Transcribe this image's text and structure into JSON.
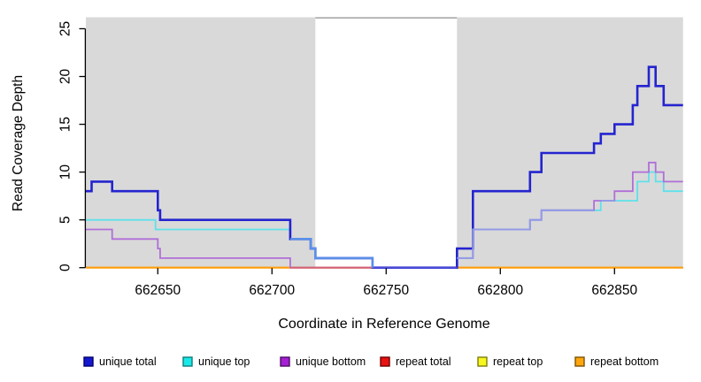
{
  "chart_data": {
    "type": "line",
    "subtype": "step-coverage",
    "title": "",
    "xlabel": "Coordinate in Reference Genome",
    "ylabel": "Read Coverage Depth",
    "xlim": [
      662618.5,
      662880
    ],
    "ylim": [
      0,
      26.2
    ],
    "x_ticks": [
      662650,
      662700,
      662750,
      662800,
      662850
    ],
    "y_ticks": [
      0,
      5,
      10,
      15,
      20,
      25
    ],
    "grid": false,
    "legend_position": "bottom",
    "panel_background": "#d9d9d9",
    "masked_region": {
      "x_start": 662719,
      "x_end": 662781,
      "color": "#ffffff",
      "top_border_color": "#9a9a9a"
    },
    "series": [
      {
        "name": "unique total",
        "color": "#2424cf",
        "width": 2.6,
        "steps": [
          [
            662618.5,
            8
          ],
          [
            662621,
            9
          ],
          [
            662630,
            8
          ],
          [
            662650,
            6
          ],
          [
            662651,
            5
          ],
          [
            662708,
            3
          ],
          [
            662717,
            2
          ],
          [
            662719,
            1
          ],
          [
            662744,
            0
          ],
          [
            662781,
            2
          ],
          [
            662788,
            8
          ],
          [
            662813,
            10
          ],
          [
            662818,
            12
          ],
          [
            662841,
            13
          ],
          [
            662844,
            14
          ],
          [
            662850,
            15
          ],
          [
            662858,
            17
          ],
          [
            662860,
            19
          ],
          [
            662865,
            21
          ],
          [
            662868,
            19
          ],
          [
            662871.5,
            17
          ]
        ],
        "end_x": 662880
      },
      {
        "name": "unique top",
        "color": "#5ee1ea",
        "width": 1.8,
        "steps": [
          [
            662618.5,
            5
          ],
          [
            662649,
            4
          ],
          [
            662708,
            3
          ],
          [
            662717,
            2
          ],
          [
            662719,
            1
          ],
          [
            662744,
            0
          ],
          [
            662781,
            1
          ],
          [
            662788,
            4
          ],
          [
            662813,
            5
          ],
          [
            662818,
            6
          ],
          [
            662844,
            7
          ],
          [
            662860,
            9
          ],
          [
            662865,
            10
          ],
          [
            662868,
            9
          ],
          [
            662871.5,
            8
          ]
        ],
        "end_x": 662880
      },
      {
        "name": "unique bottom",
        "color": "#b06fd8",
        "width": 1.8,
        "steps": [
          [
            662618.5,
            4
          ],
          [
            662630,
            3
          ],
          [
            662650,
            2
          ],
          [
            662651,
            1
          ],
          [
            662708,
            0
          ],
          [
            662781,
            1
          ],
          [
            662788,
            4
          ],
          [
            662813,
            5
          ],
          [
            662818,
            6
          ],
          [
            662841,
            7
          ],
          [
            662850,
            8
          ],
          [
            662858,
            10
          ],
          [
            662865,
            11
          ],
          [
            662868,
            10
          ],
          [
            662871.5,
            9
          ]
        ],
        "end_x": 662880
      },
      {
        "name": "repeat total",
        "color": "#e81212",
        "width": 1.6,
        "steps": [
          [
            662618.5,
            0
          ]
        ],
        "end_x": 662880
      },
      {
        "name": "repeat top",
        "color": "#f7f71f",
        "width": 1.6,
        "steps": [
          [
            662618.5,
            0
          ]
        ],
        "end_x": 662880
      },
      {
        "name": "repeat bottom",
        "color": "#ff9d0a",
        "width": 2.2,
        "steps": [
          [
            662618.5,
            0
          ]
        ],
        "end_x": 662880
      }
    ],
    "overlap_segments": [
      {
        "name": "baseline-unique-bottom-over-repeat",
        "color": "#d2607a",
        "width": 1.8,
        "steps": [
          [
            662708,
            0
          ]
        ],
        "end_x": 662744
      },
      {
        "name": "baseline-all-unique-zero",
        "color": "#4d4dd8",
        "width": 2.2,
        "steps": [
          [
            662744,
            0
          ]
        ],
        "end_x": 662781
      },
      {
        "name": "unique-top-equals-bottom-left",
        "color": "#949ae6",
        "width": 2.0,
        "steps": [
          [
            662781,
            1
          ],
          [
            662788,
            4
          ],
          [
            662813,
            5
          ],
          [
            662818,
            6
          ]
        ],
        "end_x": 662841
      },
      {
        "name": "unique-top-equals-bottom-right",
        "color": "#949ae6",
        "width": 2.0,
        "steps": [
          [
            662844,
            7
          ]
        ],
        "end_x": 662850
      },
      {
        "name": "unique-total-equals-top-descent",
        "color": "#5b8fe8",
        "width": 2.6,
        "steps": [
          [
            662708,
            3
          ],
          [
            662717,
            2
          ],
          [
            662719,
            1
          ],
          [
            662744,
            0
          ]
        ],
        "end_x": 662744
      }
    ]
  },
  "legend": {
    "items": [
      {
        "label": "unique total",
        "fill": "#1717cf",
        "border": "#00006e"
      },
      {
        "label": "unique top",
        "fill": "#1ae8e8",
        "border": "#0b7d7d"
      },
      {
        "label": "unique bottom",
        "fill": "#a520d2",
        "border": "#4d0a63"
      },
      {
        "label": "repeat total",
        "fill": "#e81212",
        "border": "#6e0000"
      },
      {
        "label": "repeat top",
        "fill": "#f7f71f",
        "border": "#7d7d0b"
      },
      {
        "label": "repeat bottom",
        "fill": "#ffa60f",
        "border": "#7d5205"
      }
    ]
  }
}
